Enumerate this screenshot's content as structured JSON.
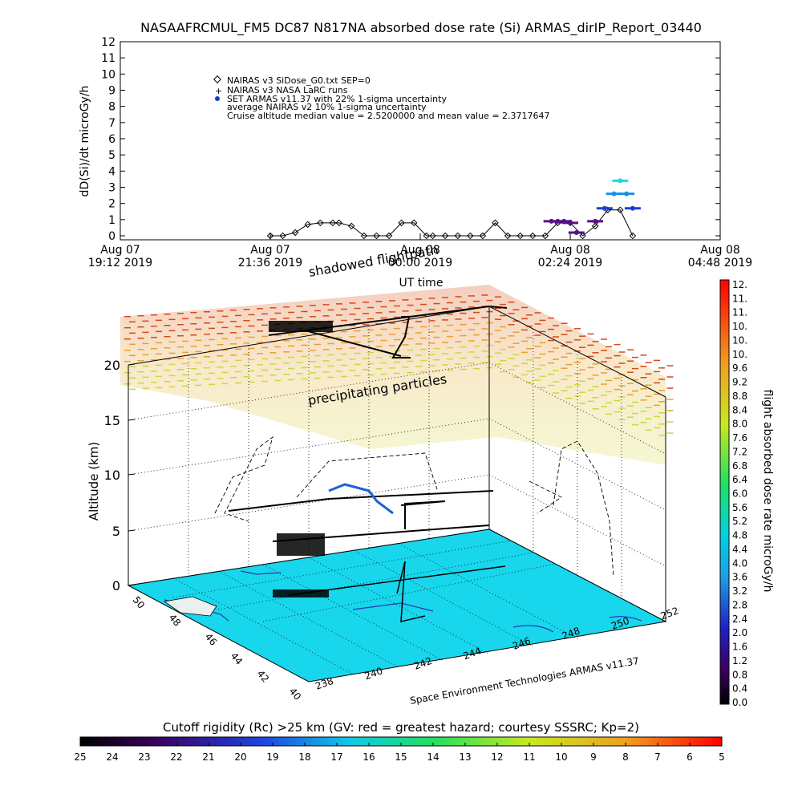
{
  "chart_data": [
    {
      "type": "scatter",
      "title": "NASAAFRCMUL_FM5 DC87 N817NA absorbed dose rate (Si) ARMAS_dirIP_Report_03440",
      "xlabel": "UT time",
      "ylabel": "dD(Si)/dt microGy/h",
      "ylim": [
        0,
        12
      ],
      "yticks": [
        "0",
        "1",
        "2",
        "3",
        "4",
        "5",
        "6",
        "7",
        "8",
        "9",
        "10",
        "11",
        "12"
      ],
      "xticks": [
        {
          "date": "Aug 07",
          "time": "19:12 2019"
        },
        {
          "date": "Aug 07",
          "time": "21:36 2019"
        },
        {
          "date": "Aug 08",
          "time": "00:00 2019"
        },
        {
          "date": "Aug 08",
          "time": "02:24 2019"
        },
        {
          "date": "Aug 08",
          "time": "04:48 2019"
        }
      ],
      "xlim_hours": [
        0,
        9.6
      ],
      "legend": [
        "NAIRAS v3 SiDose_G0.txt SEP=0",
        "NAIRAS v3 NASA LaRC runs",
        "SET ARMAS v11.37 with 22% 1-sigma uncertainty",
        "average NAIRAS v2 10% 1-sigma uncertainty",
        "Cruise altitude median value = 2.5200000 and mean value = 2.3717647"
      ],
      "series": [
        {
          "name": "NAIRAS v3 SiDose_G0.txt SEP=0",
          "x_hours": [
            2.4,
            2.6,
            2.8,
            3.0,
            3.2,
            3.4,
            3.5,
            3.7,
            3.9,
            4.1,
            4.3,
            4.5,
            4.7,
            4.9,
            5.0,
            5.2,
            5.4,
            5.6,
            5.8,
            6.0,
            6.2,
            6.4,
            6.6,
            6.8,
            7.0,
            7.2,
            7.4,
            7.6,
            7.8,
            8.0,
            8.2
          ],
          "values": [
            0,
            0,
            0.2,
            0.7,
            0.8,
            0.8,
            0.8,
            0.6,
            0,
            0,
            0,
            0.8,
            0.8,
            0,
            0,
            0,
            0,
            0,
            0,
            0.8,
            0,
            0,
            0,
            0,
            0.8,
            0.8,
            0,
            0.6,
            1.6,
            1.6,
            0
          ]
        },
        {
          "name": "SET ARMAS v11.37 with 22% 1-sigma uncertainty",
          "x_hours": [
            6.9,
            7.0,
            7.1,
            7.2,
            7.3,
            7.6,
            7.75,
            7.9,
            8.0,
            8.1,
            8.2
          ],
          "values": [
            0.9,
            0.9,
            0.9,
            0.8,
            0.2,
            0.9,
            1.7,
            2.6,
            3.4,
            2.6,
            1.7
          ]
        }
      ],
      "labels": [
        "shadowed flightpath"
      ]
    },
    {
      "type": "scatter",
      "title": "precipitating particles",
      "ylabel": "Altitude (km)",
      "zticks": [
        "0",
        "5",
        "10",
        "15",
        "20"
      ],
      "lat_ticks": [
        "40",
        "42",
        "44",
        "46",
        "48",
        "50"
      ],
      "lon_ticks": [
        "238",
        "240",
        "242",
        "244",
        "246",
        "248",
        "250",
        "252"
      ],
      "credit": "Space Environment Technologies ARMAS v11.37",
      "colorbar_dose": {
        "label": "flight absorbed dose rate microGy/h",
        "ticks": [
          "12.",
          "11.",
          "11.",
          "10.",
          "10.",
          "10.",
          "9.6",
          "9.2",
          "8.8",
          "8.4",
          "8.0",
          "7.6",
          "7.2",
          "6.8",
          "6.4",
          "6.0",
          "5.6",
          "5.2",
          "4.8",
          "4.4",
          "4.0",
          "3.6",
          "3.2",
          "2.8",
          "2.4",
          "2.0",
          "1.6",
          "1.2",
          "0.8",
          "0.4",
          "0.0"
        ]
      },
      "colorbar_rigidity": {
        "label": "Cutoff rigidity (Rc) >25 km (GV: red = greatest hazard; courtesy SSSRC; Kp=2)",
        "ticks": [
          "25",
          "24",
          "23",
          "22",
          "21",
          "20",
          "19",
          "18",
          "17",
          "16",
          "15",
          "14",
          "13",
          "12",
          "11",
          "10",
          "9",
          "8",
          "7",
          "6",
          "5"
        ]
      }
    }
  ]
}
